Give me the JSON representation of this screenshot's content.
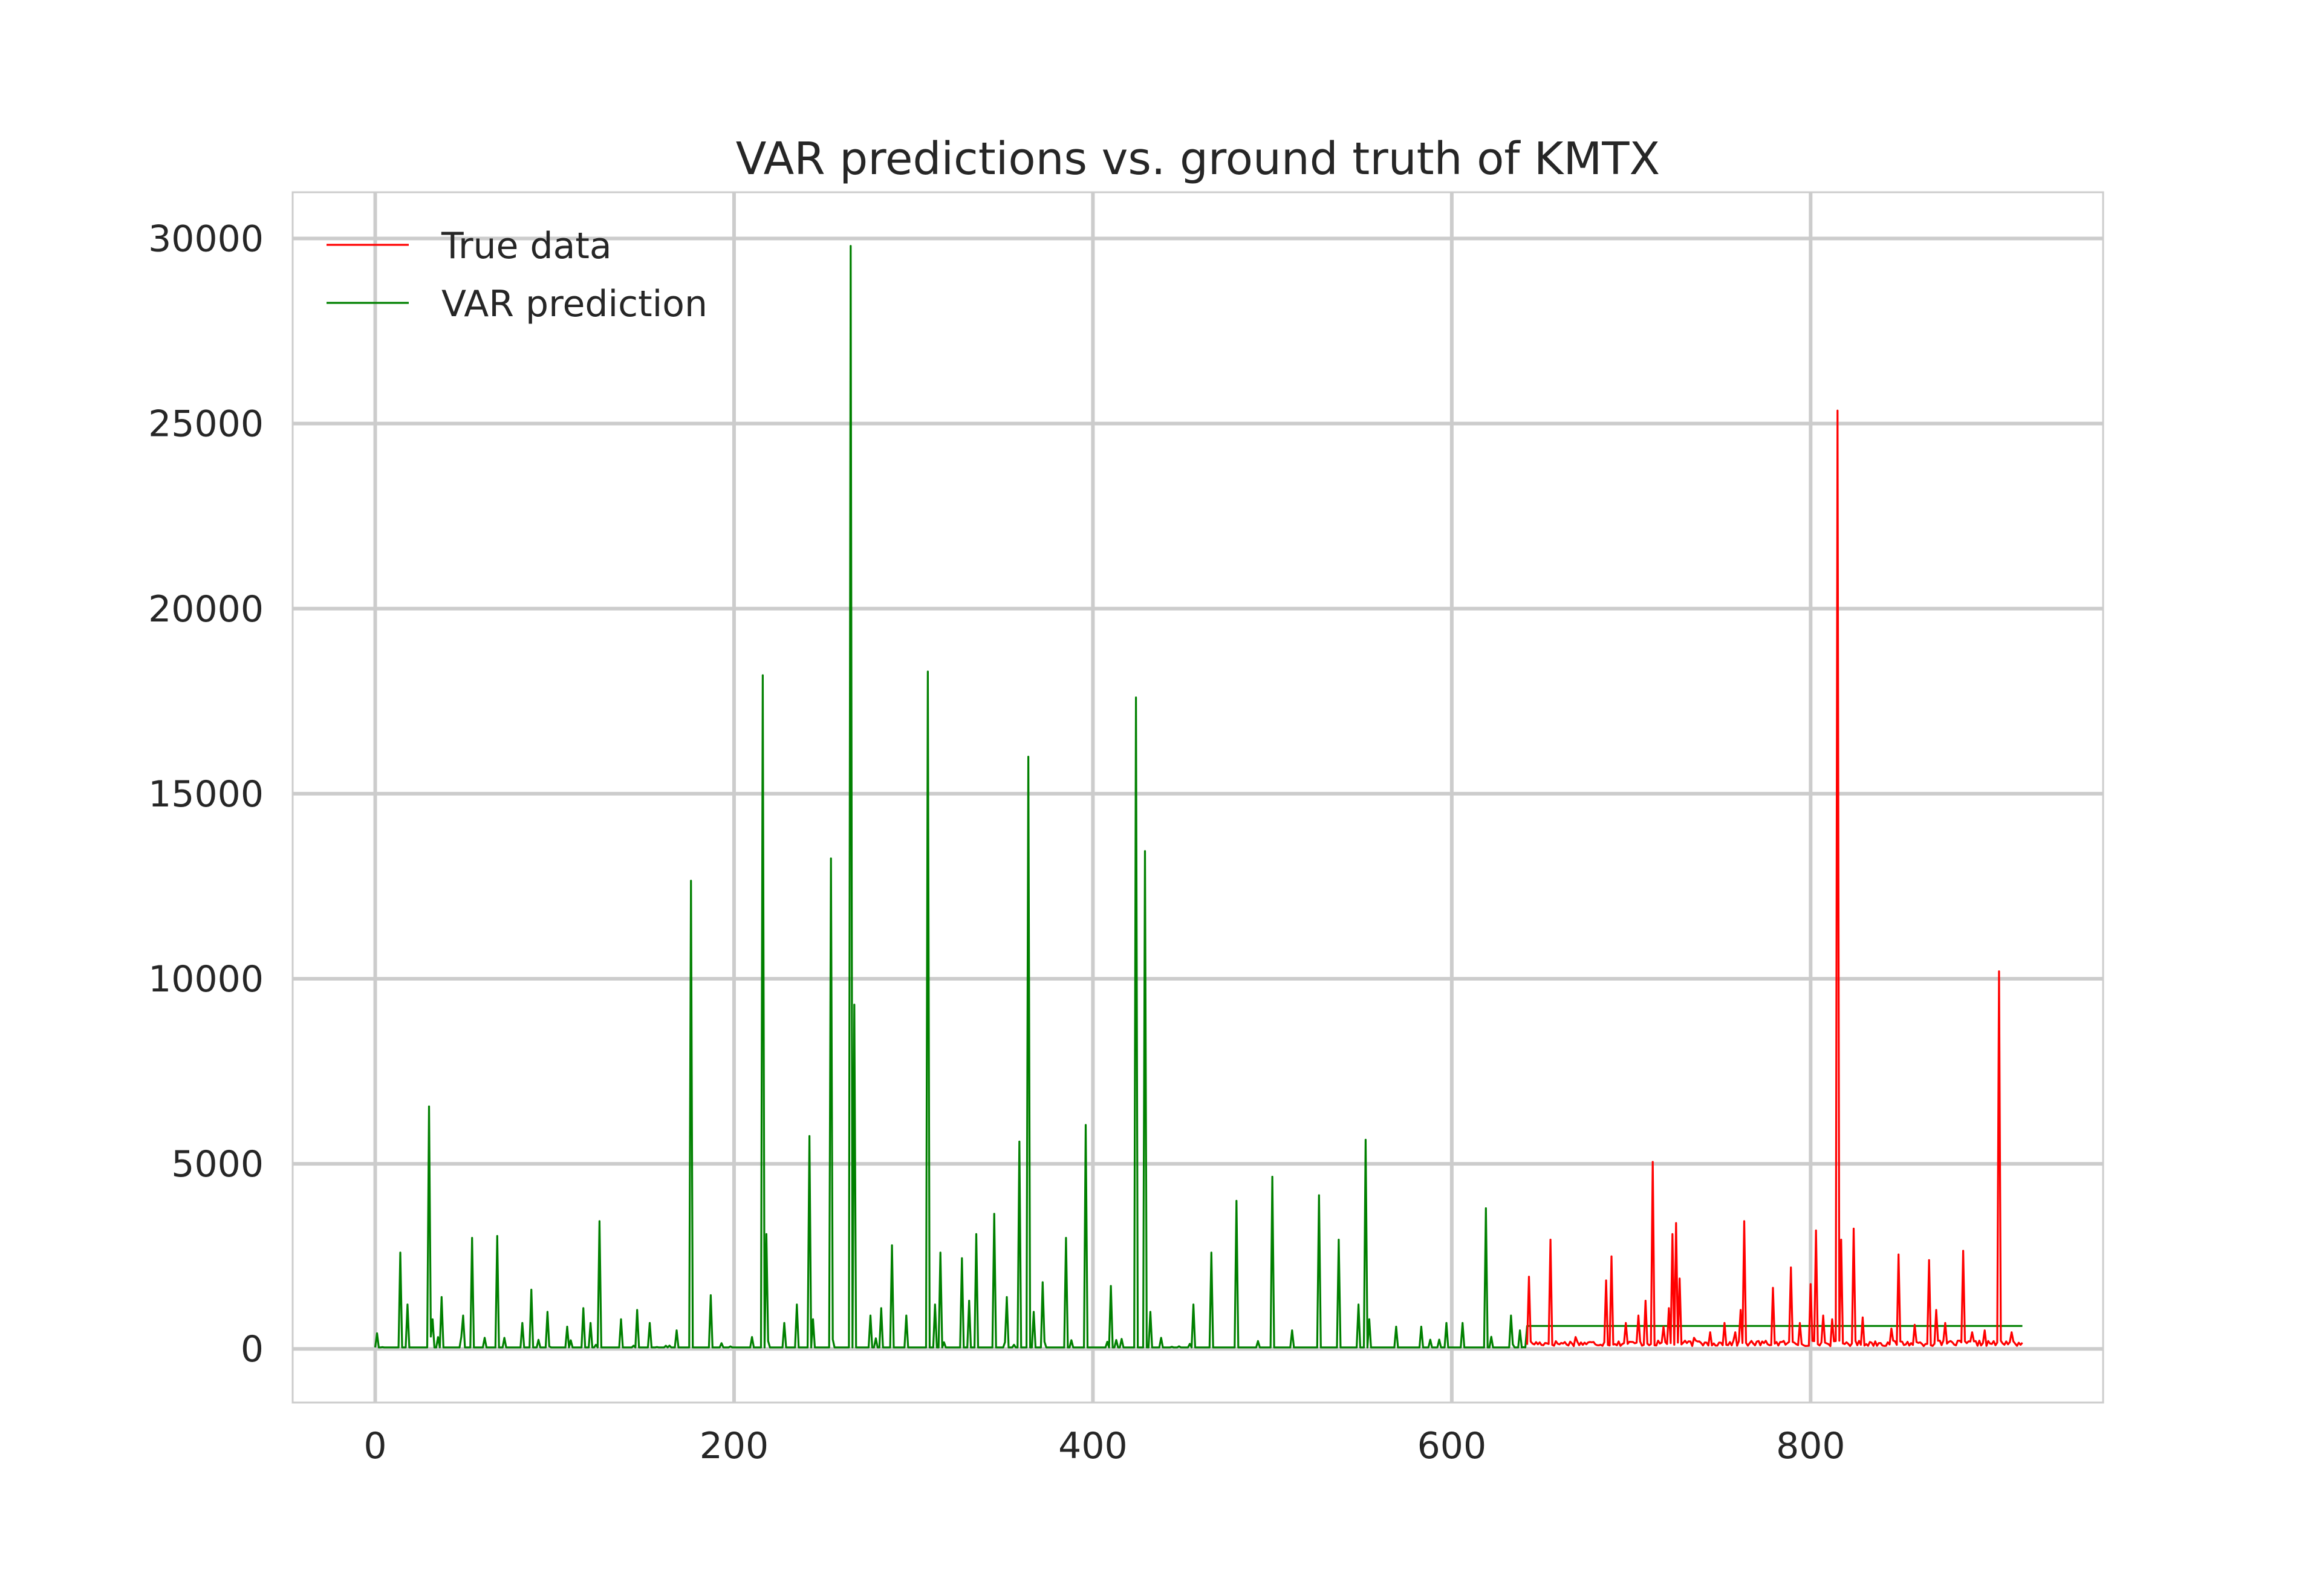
{
  "chart_data": {
    "type": "line",
    "title": "VAR predictions vs. ground truth of KMTX",
    "xlabel": "",
    "ylabel": "",
    "xlim": [
      -46,
      963
    ],
    "ylim": [
      -1450,
      31250
    ],
    "x_ticks": [
      0,
      200,
      400,
      600,
      800
    ],
    "y_ticks": [
      0,
      5000,
      10000,
      15000,
      20000,
      25000,
      30000
    ],
    "grid": true,
    "legend": {
      "position": "top-left"
    },
    "baseline": 0,
    "series": [
      {
        "name": "True data",
        "color": "#ff0000",
        "x_range": [
          642,
          918
        ],
        "base_level": 120,
        "noise_amplitude": 150,
        "peaks": [
          [
            643,
            1950
          ],
          [
            655,
            2950
          ],
          [
            669,
            320
          ],
          [
            686,
            1850
          ],
          [
            689,
            2500
          ],
          [
            697,
            700
          ],
          [
            704,
            900
          ],
          [
            708,
            1300
          ],
          [
            712,
            5050
          ],
          [
            718,
            600
          ],
          [
            721,
            1100
          ],
          [
            723,
            3100
          ],
          [
            725,
            3400
          ],
          [
            727,
            1900
          ],
          [
            735,
            300
          ],
          [
            744,
            450
          ],
          [
            752,
            700
          ],
          [
            758,
            450
          ],
          [
            761,
            1050
          ],
          [
            763,
            3450
          ],
          [
            779,
            1650
          ],
          [
            789,
            2200
          ],
          [
            794,
            700
          ],
          [
            800,
            1750
          ],
          [
            803,
            3200
          ],
          [
            807,
            900
          ],
          [
            812,
            800
          ],
          [
            815,
            25350
          ],
          [
            817,
            2950
          ],
          [
            824,
            3250
          ],
          [
            829,
            850
          ],
          [
            845,
            550
          ],
          [
            849,
            2550
          ],
          [
            858,
            650
          ],
          [
            866,
            2400
          ],
          [
            870,
            1050
          ],
          [
            875,
            700
          ],
          [
            885,
            2650
          ],
          [
            890,
            450
          ],
          [
            897,
            500
          ],
          [
            905,
            10200
          ],
          [
            912,
            450
          ]
        ]
      },
      {
        "name": "VAR prediction",
        "color": "#008000",
        "x_range": [
          0,
          918
        ],
        "base_level": 40,
        "forecast_start": 642,
        "forecast_level": 620,
        "peaks": [
          [
            1,
            420
          ],
          [
            14,
            2600
          ],
          [
            18,
            1200
          ],
          [
            30,
            6550
          ],
          [
            32,
            800
          ],
          [
            37,
            1400
          ],
          [
            49,
            900
          ],
          [
            54,
            3000
          ],
          [
            61,
            300
          ],
          [
            68,
            3050
          ],
          [
            82,
            700
          ],
          [
            87,
            1600
          ],
          [
            96,
            1000
          ],
          [
            107,
            600
          ],
          [
            116,
            1100
          ],
          [
            120,
            700
          ],
          [
            125,
            3450
          ],
          [
            137,
            800
          ],
          [
            146,
            1050
          ],
          [
            153,
            700
          ],
          [
            168,
            500
          ],
          [
            176,
            12650
          ],
          [
            187,
            1450
          ],
          [
            216,
            18200
          ],
          [
            218,
            3100
          ],
          [
            228,
            700
          ],
          [
            235,
            1200
          ],
          [
            242,
            5750
          ],
          [
            244,
            800
          ],
          [
            254,
            13250
          ],
          [
            265,
            29800
          ],
          [
            267,
            9300
          ],
          [
            276,
            900
          ],
          [
            282,
            1100
          ],
          [
            288,
            2800
          ],
          [
            296,
            900
          ],
          [
            308,
            18300
          ],
          [
            312,
            1200
          ],
          [
            315,
            2600
          ],
          [
            327,
            2450
          ],
          [
            331,
            1300
          ],
          [
            335,
            3100
          ],
          [
            345,
            3650
          ],
          [
            352,
            1400
          ],
          [
            359,
            5600
          ],
          [
            364,
            16000
          ],
          [
            367,
            1000
          ],
          [
            372,
            1800
          ],
          [
            385,
            3000
          ],
          [
            396,
            6050
          ],
          [
            410,
            1700
          ],
          [
            424,
            17600
          ],
          [
            429,
            13450
          ],
          [
            432,
            1000
          ],
          [
            456,
            1200
          ],
          [
            466,
            2600
          ],
          [
            480,
            4000
          ],
          [
            500,
            4650
          ],
          [
            511,
            500
          ],
          [
            526,
            4150
          ],
          [
            537,
            2950
          ],
          [
            548,
            1200
          ],
          [
            552,
            5650
          ],
          [
            554,
            800
          ],
          [
            569,
            600
          ],
          [
            583,
            600
          ],
          [
            597,
            700
          ],
          [
            606,
            700
          ],
          [
            619,
            3800
          ],
          [
            633,
            900
          ],
          [
            638,
            500
          ]
        ]
      }
    ]
  }
}
